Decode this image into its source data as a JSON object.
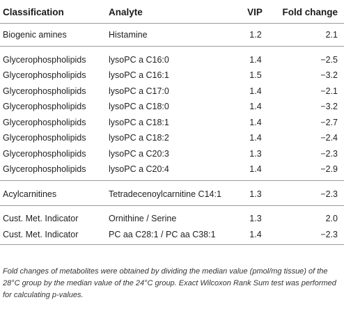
{
  "header": {
    "classification": "Classification",
    "analyte": "Analyte",
    "vip": "VIP",
    "fold_change": "Fold change"
  },
  "groups": [
    {
      "rows": [
        {
          "classification": "Biogenic amines",
          "analyte": "Histamine",
          "vip": "1.2",
          "fold_change": "2.1"
        }
      ]
    },
    {
      "rows": [
        {
          "classification": "Glycerophospholipids",
          "analyte": "lysoPC a C16:0",
          "vip": "1.4",
          "fold_change": "−2.5"
        },
        {
          "classification": "Glycerophospholipids",
          "analyte": "lysoPC a C16:1",
          "vip": "1.5",
          "fold_change": "−3.2"
        },
        {
          "classification": "Glycerophospholipids",
          "analyte": "lysoPC a C17:0",
          "vip": "1.4",
          "fold_change": "−2.1"
        },
        {
          "classification": "Glycerophospholipids",
          "analyte": "lysoPC a C18:0",
          "vip": "1.4",
          "fold_change": "−3.2"
        },
        {
          "classification": "Glycerophospholipids",
          "analyte": "lysoPC a C18:1",
          "vip": "1.4",
          "fold_change": "−2.7"
        },
        {
          "classification": "Glycerophospholipids",
          "analyte": "lysoPC a C18:2",
          "vip": "1.4",
          "fold_change": "−2.4"
        },
        {
          "classification": "Glycerophospholipids",
          "analyte": "lysoPC a C20:3",
          "vip": "1.3",
          "fold_change": "−2.3"
        },
        {
          "classification": "Glycerophospholipids",
          "analyte": "lysoPC a C20:4",
          "vip": "1.4",
          "fold_change": "−2.9"
        }
      ]
    },
    {
      "rows": [
        {
          "classification": "Acylcarnitines",
          "analyte": "Tetradecenoylcarnitine C14:1",
          "vip": "1.3",
          "fold_change": "−2.3"
        }
      ]
    },
    {
      "rows": [
        {
          "classification": "Cust. Met. Indicator",
          "analyte": "Ornithine / Serine",
          "vip": "1.3",
          "fold_change": "2.0"
        },
        {
          "classification": "Cust. Met. Indicator",
          "analyte": "PC aa C28:1 / PC aa C38:1",
          "vip": "1.4",
          "fold_change": "−2.3"
        }
      ]
    }
  ],
  "footnote": "Fold changes of metabolites were obtained by dividing the median value (pmol/mg tissue) of the 28°C group by the median value of the 24°C group. Exact Wilcoxon Rank Sum test was performed for calculating p-values."
}
